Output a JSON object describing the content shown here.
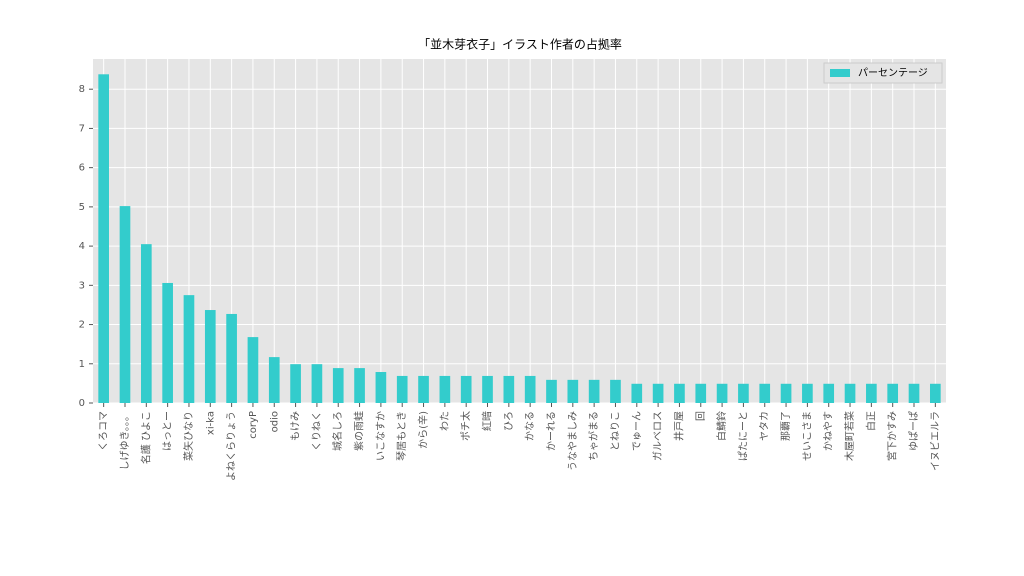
{
  "chart_data": {
    "type": "bar",
    "title": "「並木芽衣子」イラスト作者の占拠率",
    "categories": [
      "くろコマ",
      "しげゆき。。。",
      "名護 ひよこ",
      "はっとー",
      "菜矢ひなり",
      "xi-ka",
      "よねくらりょう",
      "coryP",
      "odio",
      "もけみ",
      "くりねく",
      "城名しろ",
      "紫の雨蛙",
      "いこなすか",
      "琴居もとき",
      "から(辛)",
      "わた",
      "ポチ太",
      "紅暗",
      "ひろ",
      "かなる",
      "かーれる",
      "うなやましみ",
      "ちゃがまる",
      "とねりこ",
      "でゅーん",
      "ガルベロス",
      "井戸屋",
      "回",
      "白鯖鈴",
      "ぱたにーと",
      "ヤタカ",
      "那覇了",
      "せいこさま",
      "かねやす",
      "木屋町若菜",
      "白正",
      "宮下かすみ",
      "ゆぱーぱ",
      "イヌビエルラ"
    ],
    "series": [
      {
        "name": "パーセンテージ",
        "color": "#33cccc",
        "values": [
          8.38,
          5.02,
          4.05,
          3.06,
          2.75,
          2.37,
          2.27,
          1.68,
          1.17,
          0.99,
          0.99,
          0.89,
          0.89,
          0.79,
          0.69,
          0.69,
          0.69,
          0.69,
          0.69,
          0.69,
          0.69,
          0.59,
          0.59,
          0.59,
          0.59,
          0.49,
          0.49,
          0.49,
          0.49,
          0.49,
          0.49,
          0.49,
          0.49,
          0.49,
          0.49,
          0.49,
          0.49,
          0.49,
          0.49,
          0.49
        ]
      }
    ],
    "ylim": [
      0,
      8.77
    ],
    "yticks": [
      0,
      1,
      2,
      3,
      4,
      5,
      6,
      7,
      8
    ],
    "grid": true,
    "legend": "upper right"
  }
}
